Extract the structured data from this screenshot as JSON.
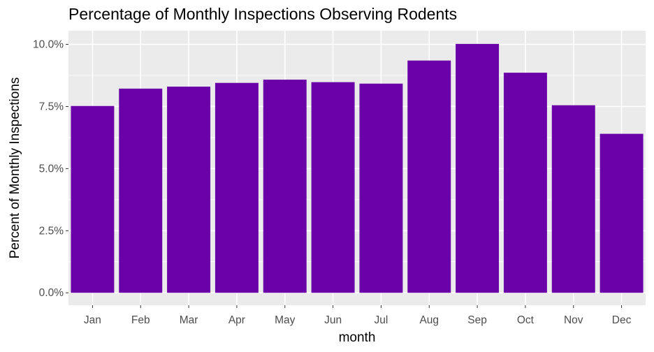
{
  "chart_data": {
    "type": "bar",
    "title": "Percentage of Monthly Inspections Observing Rodents",
    "xlabel": "month",
    "ylabel": "Percent of Monthly Inspections",
    "categories": [
      "Jan",
      "Feb",
      "Mar",
      "Apr",
      "May",
      "Jun",
      "Jul",
      "Aug",
      "Sep",
      "Oct",
      "Nov",
      "Dec"
    ],
    "values": [
      7.52,
      8.22,
      8.3,
      8.45,
      8.58,
      8.48,
      8.42,
      9.35,
      10.02,
      8.86,
      7.55,
      6.4
    ],
    "ylim": [
      -0.5,
      10.55
    ],
    "yticks": [
      0,
      2.5,
      5.0,
      7.5,
      10.0
    ],
    "ytick_labels": [
      "0.0%",
      "2.5%",
      "5.0%",
      "7.5%",
      "10.0%"
    ],
    "grid": true,
    "bar_color": "#6a00a8",
    "panel_background": "#ebebeb"
  }
}
